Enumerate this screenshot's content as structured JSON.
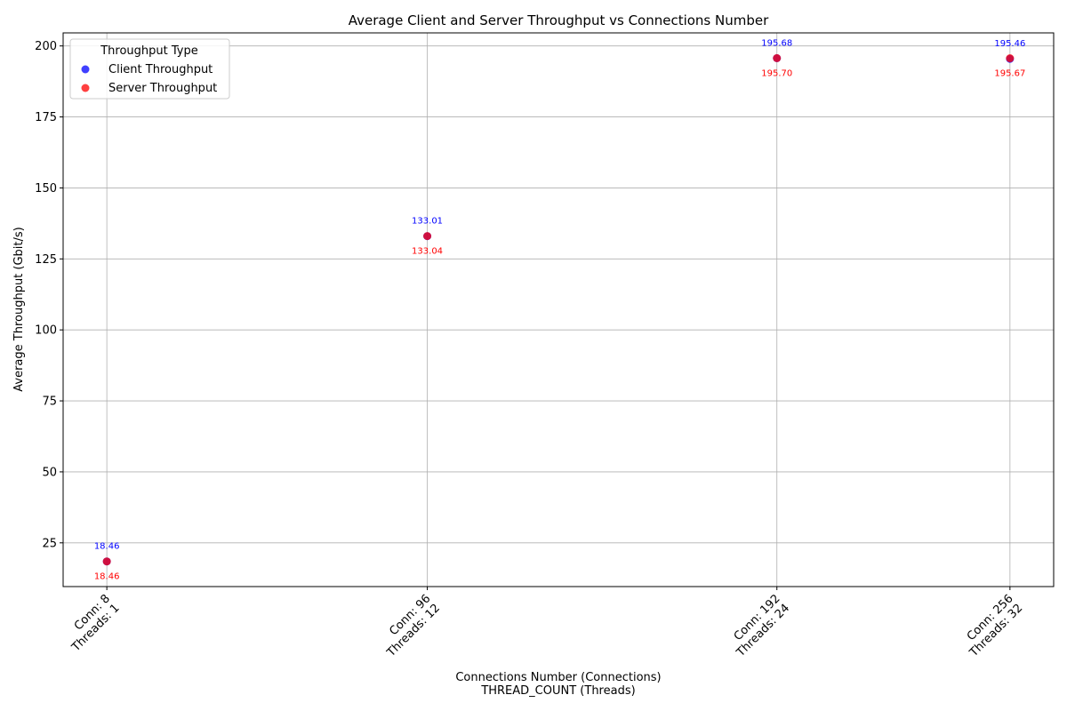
{
  "chart_data": {
    "type": "scatter",
    "title": "Average Client and Server Throughput vs Connections Number",
    "xlabel": [
      "Connections Number (Connections)",
      "THREAD_COUNT (Threads)"
    ],
    "ylabel": "Average Throughput (Gbit/s)",
    "x": [
      8,
      96,
      192,
      256
    ],
    "x_tick_labels": [
      [
        "Conn: 8",
        "Threads: 1"
      ],
      [
        "Conn: 96",
        "Threads: 12"
      ],
      [
        "Conn: 192",
        "Threads: 24"
      ],
      [
        "Conn: 256",
        "Threads: 32"
      ]
    ],
    "xlim": [
      -4,
      268
    ],
    "ylim": [
      9.6,
      204.6
    ],
    "y_ticks": [
      25,
      50,
      75,
      100,
      125,
      150,
      175,
      200
    ],
    "grid": true,
    "legend": {
      "title": "Throughput Type",
      "placement": "top-left"
    },
    "series": [
      {
        "name": "Client Throughput",
        "color": "#0000ff",
        "values": [
          18.46,
          133.01,
          195.68,
          195.46
        ],
        "labels": [
          "18.46",
          "133.01",
          "195.68",
          "195.46"
        ]
      },
      {
        "name": "Server Throughput",
        "color": "#ff0000",
        "values": [
          18.46,
          133.04,
          195.7,
          195.67
        ],
        "labels": [
          "18.46",
          "133.04",
          "195.70",
          "195.67"
        ]
      }
    ]
  }
}
